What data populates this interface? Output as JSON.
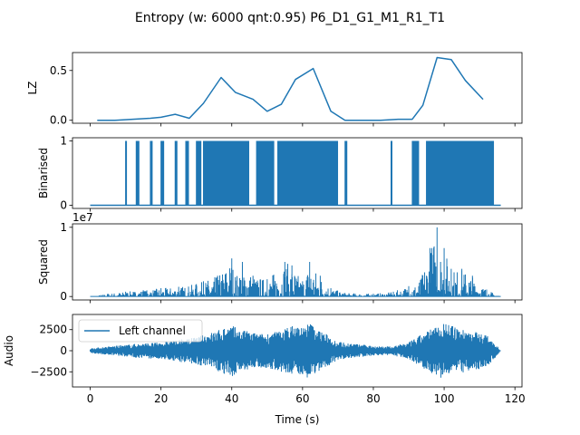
{
  "title": "Entropy (w: 6000 qnt:0.95) P6_D1_G1_M1_R1_T1",
  "colors": {
    "series": "#1f77b4",
    "axes": "#000000",
    "background": "#ffffff"
  },
  "chart_data": [
    {
      "type": "line",
      "ylabel": "LZ",
      "xlim": [
        -5,
        122
      ],
      "ylim": [
        -0.03,
        0.68
      ],
      "yticks": [
        0,
        0.5
      ],
      "ytick_labels": [
        "0.0",
        "0.5"
      ],
      "x": [
        2,
        7,
        12,
        17,
        20,
        24,
        28,
        32,
        37,
        41,
        46,
        50,
        54,
        58,
        63,
        68,
        72,
        77,
        82,
        87,
        91,
        94,
        98,
        102,
        106,
        111
      ],
      "values": [
        0.0,
        0.0,
        0.01,
        0.02,
        0.03,
        0.06,
        0.02,
        0.17,
        0.43,
        0.28,
        0.21,
        0.09,
        0.16,
        0.41,
        0.52,
        0.09,
        0.0,
        0.0,
        0.0,
        0.01,
        0.01,
        0.15,
        0.63,
        0.61,
        0.4,
        0.21
      ]
    },
    {
      "type": "line",
      "ylabel": "Binarised",
      "xlim": [
        -5,
        122
      ],
      "ylim": [
        -0.05,
        1.05
      ],
      "yticks": [
        0,
        1
      ],
      "ytick_labels": [
        "0",
        "1"
      ],
      "active_regions": [
        [
          10,
          10.4
        ],
        [
          13,
          14
        ],
        [
          17,
          17.6
        ],
        [
          20,
          21
        ],
        [
          24,
          24.6
        ],
        [
          27,
          28
        ],
        [
          30,
          31.4
        ],
        [
          32,
          45
        ],
        [
          47,
          52
        ],
        [
          53,
          70
        ],
        [
          72,
          72.6
        ],
        [
          85,
          85.4
        ],
        [
          91,
          93
        ],
        [
          95,
          114
        ]
      ],
      "baseline_range": [
        0,
        116
      ]
    },
    {
      "type": "line",
      "ylabel": "Squared",
      "offset_text": "1e7",
      "xlim": [
        -5,
        122
      ],
      "ylim": [
        -0.05,
        1.05
      ],
      "yticks": [
        0,
        1
      ],
      "ytick_labels": [
        "0",
        "1"
      ],
      "envelope_x": [
        0,
        5,
        10,
        15,
        20,
        25,
        30,
        32,
        36,
        40,
        41,
        43,
        46,
        50,
        55,
        57,
        60,
        62,
        65,
        68,
        72,
        80,
        85,
        90,
        93,
        96,
        98,
        99,
        100,
        102,
        105,
        108,
        112,
        116
      ],
      "envelope_max": [
        0.0,
        0.04,
        0.07,
        0.09,
        0.12,
        0.14,
        0.18,
        0.22,
        0.3,
        0.55,
        0.28,
        0.5,
        0.3,
        0.25,
        0.5,
        0.45,
        0.22,
        0.5,
        0.3,
        0.12,
        0.05,
        0.04,
        0.06,
        0.15,
        0.2,
        0.7,
        1.0,
        0.5,
        0.7,
        0.4,
        0.4,
        0.3,
        0.1,
        0.0
      ]
    },
    {
      "type": "line",
      "ylabel": "Audio",
      "xlabel": "Time (s)",
      "xlim": [
        -5,
        122
      ],
      "ylim": [
        -4300,
        4300
      ],
      "xticks": [
        0,
        20,
        40,
        60,
        80,
        100,
        120
      ],
      "xtick_labels": [
        "0",
        "20",
        "40",
        "60",
        "80",
        "100",
        "120"
      ],
      "yticks": [
        -2500,
        0,
        2500
      ],
      "ytick_labels": [
        "−2500",
        "0",
        "2500"
      ],
      "legend": {
        "label": "Left channel",
        "placement": "upper left"
      },
      "envelope_x": [
        0,
        5,
        10,
        15,
        20,
        25,
        30,
        35,
        40,
        42,
        45,
        48,
        52,
        55,
        58,
        60,
        62,
        64,
        66,
        68,
        70,
        75,
        80,
        85,
        90,
        95,
        98,
        100,
        103,
        106,
        110,
        113,
        116
      ],
      "envelope_amp": [
        300,
        500,
        700,
        900,
        1000,
        1300,
        1600,
        2300,
        3100,
        2500,
        2300,
        2000,
        2200,
        2700,
        3100,
        2800,
        3400,
        2600,
        2200,
        1600,
        1100,
        800,
        600,
        500,
        1000,
        2300,
        3000,
        3400,
        2800,
        2500,
        2200,
        1600,
        0
      ]
    }
  ]
}
